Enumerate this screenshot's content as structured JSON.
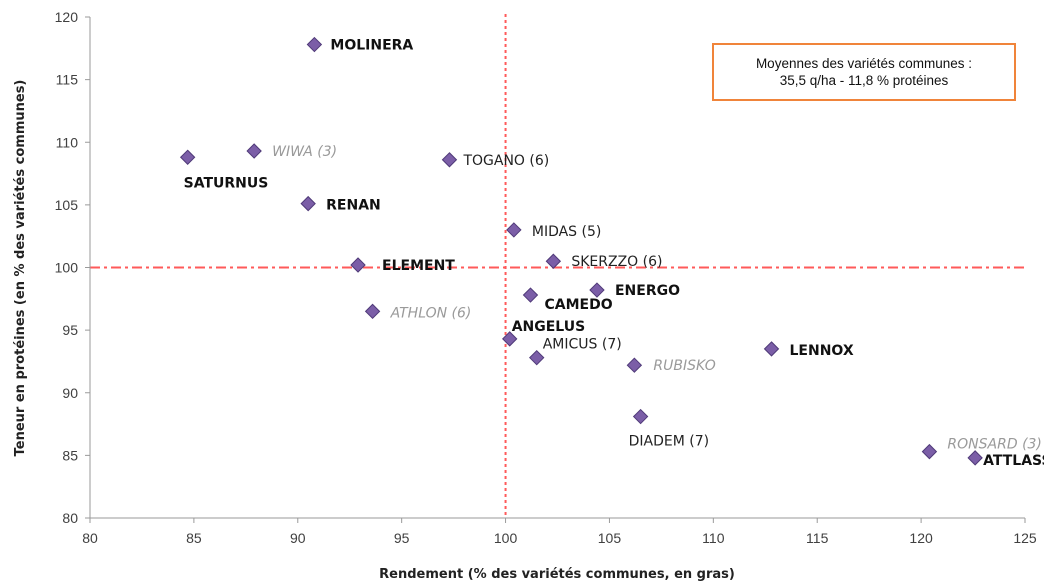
{
  "chart_data": {
    "type": "scatter",
    "xlabel": "Rendement (% des variétés communes, en gras)",
    "ylabel": "Teneur en protéines (en % des variétés communes)",
    "xlim": [
      80,
      125
    ],
    "ylim": [
      80,
      120
    ],
    "xticks": [
      "80",
      "85",
      "90",
      "95",
      "100",
      "105",
      "110",
      "115",
      "120",
      "125"
    ],
    "yticks": [
      "80",
      "85",
      "90",
      "95",
      "100",
      "105",
      "110",
      "115",
      "120"
    ],
    "reference_lines": {
      "x": 100,
      "y": 100,
      "color": "#ff5a5a"
    },
    "marker_color": "#7b5ea7",
    "annotation": {
      "line1": "Moyennes des variétés communes :",
      "line2": "35,5 q/ha  -  11,8 % protéines"
    },
    "points": [
      {
        "label": "MOLINERA",
        "x": 90.8,
        "y": 117.8,
        "style": "bold"
      },
      {
        "label": "WIWA (3)",
        "x": 87.9,
        "y": 109.3,
        "style": "grey"
      },
      {
        "label": "SATURNUS",
        "x": 84.7,
        "y": 108.8,
        "style": "bold"
      },
      {
        "label": "TOGANO (6)",
        "x": 97.3,
        "y": 108.6,
        "style": "normal"
      },
      {
        "label": "RENAN",
        "x": 90.5,
        "y": 105.1,
        "style": "bold"
      },
      {
        "label": "MIDAS (5)",
        "x": 100.4,
        "y": 103.0,
        "style": "normal"
      },
      {
        "label": "ELEMENT",
        "x": 92.9,
        "y": 100.2,
        "style": "bold"
      },
      {
        "label": "SKERZZO (6)",
        "x": 102.3,
        "y": 100.5,
        "style": "normal"
      },
      {
        "label": "ENERGO",
        "x": 104.4,
        "y": 98.2,
        "style": "bold"
      },
      {
        "label": "CAMEDO",
        "x": 101.2,
        "y": 97.8,
        "style": "bold"
      },
      {
        "label": "ATHLON (6)",
        "x": 93.6,
        "y": 96.5,
        "style": "grey"
      },
      {
        "label": "ANGELUS",
        "x": 100.2,
        "y": 94.3,
        "style": "bold"
      },
      {
        "label": "AMICUS (7)",
        "x": 101.5,
        "y": 92.8,
        "style": "normal"
      },
      {
        "label": "RUBISKO",
        "x": 106.2,
        "y": 92.2,
        "style": "grey"
      },
      {
        "label": "LENNOX",
        "x": 112.8,
        "y": 93.5,
        "style": "bold"
      },
      {
        "label": "DIADEM (7)",
        "x": 106.5,
        "y": 88.1,
        "style": "normal"
      },
      {
        "label": "RONSARD (3)",
        "x": 120.4,
        "y": 85.3,
        "style": "grey"
      },
      {
        "label": "ATTLASS",
        "x": 122.6,
        "y": 84.8,
        "style": "bold"
      }
    ]
  }
}
